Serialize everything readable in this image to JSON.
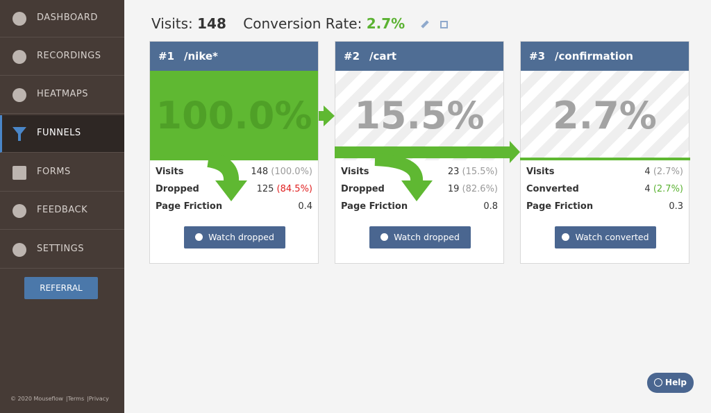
{
  "sidebar": {
    "items": [
      {
        "label": "DASHBOARD"
      },
      {
        "label": "RECORDINGS"
      },
      {
        "label": "HEATMAPS"
      },
      {
        "label": "FUNNELS"
      },
      {
        "label": "FORMS"
      },
      {
        "label": "FEEDBACK"
      },
      {
        "label": "SETTINGS"
      }
    ],
    "referral": "REFERRAL",
    "footer": {
      "copyright": "© 2020 Mouseflow",
      "terms": "|Terms",
      "privacy": "|Privacy"
    }
  },
  "header": {
    "visits_label": "Visits:",
    "visits_value": "148",
    "conversion_label": "Conversion Rate:",
    "conversion_value": "2.7%"
  },
  "steps": [
    {
      "number": "#1",
      "path": "/nike*",
      "percent": "100.0%",
      "rows": [
        {
          "label": "Visits",
          "value": "148",
          "detail": "(100.0%)"
        },
        {
          "label": "Dropped",
          "value": "125",
          "detail": "(84.5%)"
        },
        {
          "label": "Page Friction",
          "value": "0.4"
        }
      ],
      "button": "Watch dropped"
    },
    {
      "number": "#2",
      "path": "/cart",
      "percent": "15.5%",
      "rows": [
        {
          "label": "Visits",
          "value": "23",
          "detail": "(15.5%)"
        },
        {
          "label": "Dropped",
          "value": "19",
          "detail": "(82.6%)"
        },
        {
          "label": "Page Friction",
          "value": "0.8"
        }
      ],
      "button": "Watch dropped"
    },
    {
      "number": "#3",
      "path": "/confirmation",
      "percent": "2.7%",
      "rows": [
        {
          "label": "Visits",
          "value": "4",
          "detail": "(2.7%)"
        },
        {
          "label": "Converted",
          "value": "4",
          "detail": "(2.7%)"
        },
        {
          "label": "Page Friction",
          "value": "0.3"
        }
      ],
      "button": "Watch converted"
    }
  ],
  "help": "Help"
}
